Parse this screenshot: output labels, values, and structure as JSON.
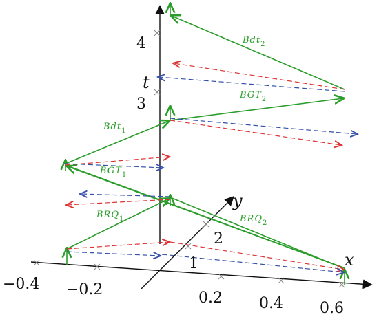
{
  "axes": {
    "x": "x",
    "y": "y",
    "t": "t"
  },
  "x_ticks": [
    "−0.4",
    "−0.2",
    "0.2",
    "0.4",
    "0.6"
  ],
  "y_ticks": [
    "1",
    "2"
  ],
  "t_ticks": [
    "3",
    "4"
  ],
  "edges": [
    {
      "text": "Bdt",
      "sub": "2"
    },
    {
      "text": "BGT",
      "sub": "2"
    },
    {
      "text": "Bdt",
      "sub": "1"
    },
    {
      "text": "BGT",
      "sub": "1"
    },
    {
      "text": "BRQ",
      "sub": "1"
    },
    {
      "text": "BRQ",
      "sub": "2"
    }
  ]
}
